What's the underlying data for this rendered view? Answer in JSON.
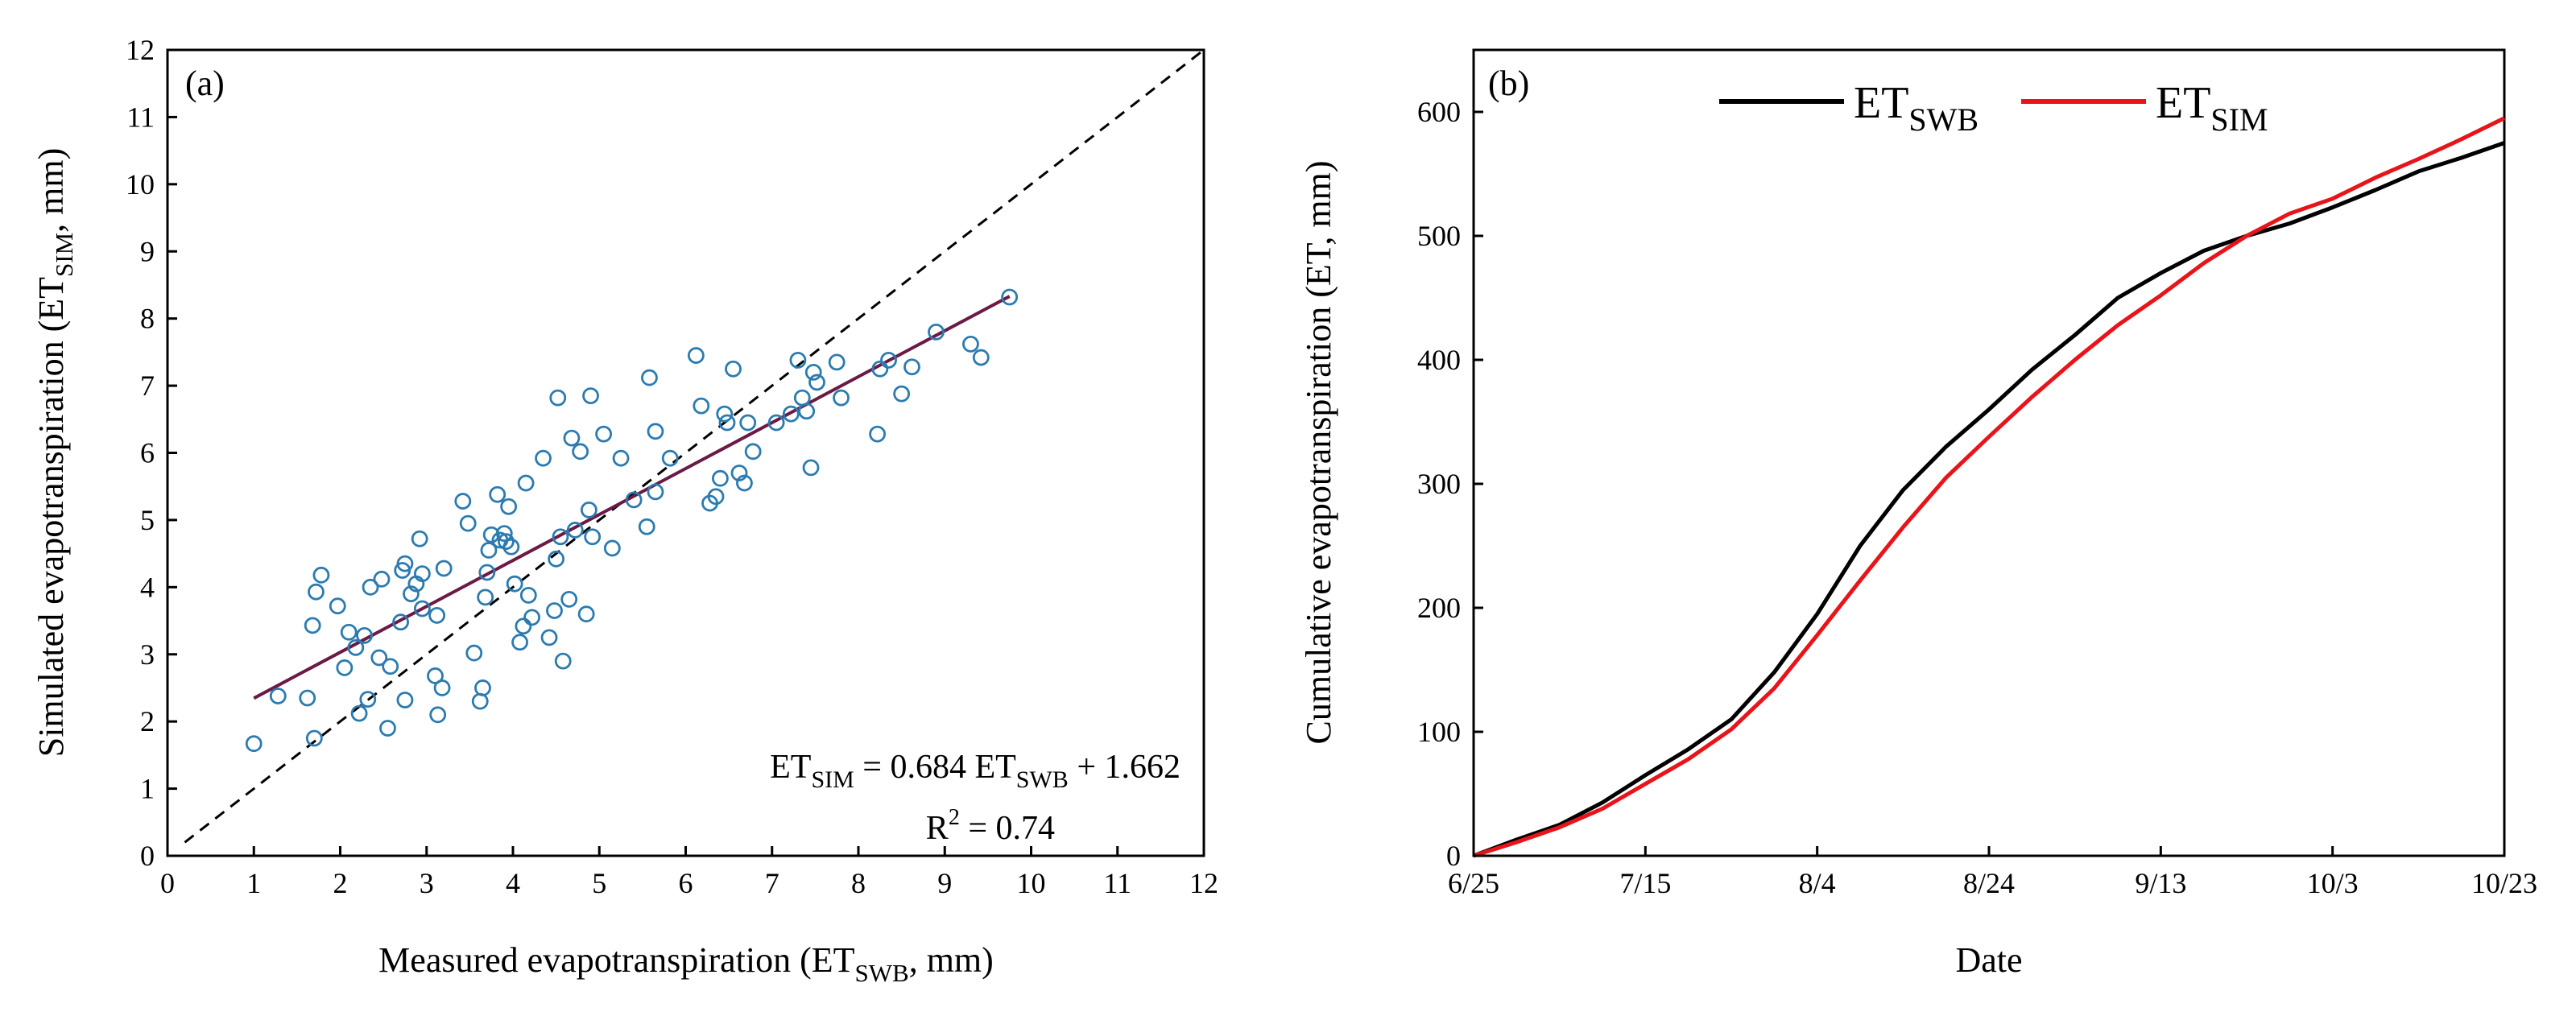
{
  "chart_data": [
    {
      "type": "scatter",
      "panel_label": "(a)",
      "xlabel": {
        "main": "Measured evapotranspiration (ET",
        "sub": "SWB",
        "tail": ", mm)"
      },
      "ylabel": {
        "main": "Simulated evapotranspiration (ET",
        "sub": "SIM",
        "tail": ", mm)"
      },
      "xlim": [
        0,
        12
      ],
      "ylim": [
        0,
        12
      ],
      "xticks": [
        "0",
        "1",
        "2",
        "3",
        "4",
        "5",
        "6",
        "7",
        "8",
        "9",
        "10",
        "11",
        "12"
      ],
      "yticks": [
        "0",
        "1",
        "2",
        "3",
        "4",
        "5",
        "6",
        "7",
        "8",
        "9",
        "10",
        "11",
        "12"
      ],
      "grid": false,
      "one_to_one_line": {
        "style": "dashed",
        "color": "#000000"
      },
      "regression": {
        "slope": 0.684,
        "intercept": 1.662,
        "x_range": [
          1.0,
          9.75
        ],
        "color": "#6b1a45"
      },
      "equation": {
        "p1": "ET",
        "s1": "SIM",
        "p2": " = 0.684 ET",
        "s2": "SWB",
        "p3": " + 1.662"
      },
      "r2": {
        "p1": "R",
        "sup": "2",
        "p2": " = 0.74"
      },
      "marker_color": "#2b7bb0",
      "points": [
        [
          1.0,
          1.67
        ],
        [
          1.28,
          2.38
        ],
        [
          1.62,
          2.35
        ],
        [
          1.7,
          1.75
        ],
        [
          1.68,
          3.43
        ],
        [
          1.72,
          3.93
        ],
        [
          1.78,
          4.18
        ],
        [
          1.97,
          3.72
        ],
        [
          2.05,
          2.8
        ],
        [
          2.1,
          3.33
        ],
        [
          2.18,
          3.1
        ],
        [
          2.22,
          2.12
        ],
        [
          2.28,
          3.28
        ],
        [
          2.32,
          2.33
        ],
        [
          2.35,
          4.0
        ],
        [
          2.45,
          2.95
        ],
        [
          2.48,
          4.12
        ],
        [
          2.55,
          1.9
        ],
        [
          2.58,
          2.82
        ],
        [
          2.7,
          3.48
        ],
        [
          2.72,
          4.25
        ],
        [
          2.75,
          4.35
        ],
        [
          2.75,
          2.32
        ],
        [
          2.82,
          3.9
        ],
        [
          2.88,
          4.05
        ],
        [
          2.92,
          4.72
        ],
        [
          2.95,
          4.2
        ],
        [
          2.95,
          3.68
        ],
        [
          3.1,
          2.68
        ],
        [
          3.12,
          3.58
        ],
        [
          3.13,
          2.1
        ],
        [
          3.18,
          2.5
        ],
        [
          3.2,
          4.28
        ],
        [
          3.42,
          5.28
        ],
        [
          3.48,
          4.95
        ],
        [
          3.55,
          3.02
        ],
        [
          3.62,
          2.3
        ],
        [
          3.65,
          2.5
        ],
        [
          3.68,
          3.85
        ],
        [
          3.7,
          4.22
        ],
        [
          3.72,
          4.55
        ],
        [
          3.75,
          4.78
        ],
        [
          3.82,
          5.38
        ],
        [
          3.85,
          4.7
        ],
        [
          3.9,
          4.8
        ],
        [
          3.92,
          4.68
        ],
        [
          3.95,
          5.2
        ],
        [
          3.98,
          4.6
        ],
        [
          4.02,
          4.05
        ],
        [
          4.08,
          3.18
        ],
        [
          4.12,
          3.42
        ],
        [
          4.15,
          5.55
        ],
        [
          4.18,
          3.88
        ],
        [
          4.22,
          3.55
        ],
        [
          4.35,
          5.92
        ],
        [
          4.42,
          3.25
        ],
        [
          4.48,
          3.65
        ],
        [
          4.5,
          4.42
        ],
        [
          4.52,
          6.82
        ],
        [
          4.55,
          4.75
        ],
        [
          4.58,
          2.9
        ],
        [
          4.65,
          3.82
        ],
        [
          4.68,
          6.22
        ],
        [
          4.72,
          4.85
        ],
        [
          4.78,
          6.02
        ],
        [
          4.85,
          3.6
        ],
        [
          4.88,
          5.15
        ],
        [
          4.9,
          6.85
        ],
        [
          4.92,
          4.75
        ],
        [
          5.05,
          6.28
        ],
        [
          5.15,
          4.58
        ],
        [
          5.25,
          5.92
        ],
        [
          5.4,
          5.3
        ],
        [
          5.55,
          4.9
        ],
        [
          5.58,
          7.12
        ],
        [
          5.65,
          5.42
        ],
        [
          5.65,
          6.32
        ],
        [
          5.82,
          5.92
        ],
        [
          6.12,
          7.45
        ],
        [
          6.18,
          6.7
        ],
        [
          6.28,
          5.25
        ],
        [
          6.35,
          5.35
        ],
        [
          6.4,
          5.62
        ],
        [
          6.45,
          6.58
        ],
        [
          6.48,
          6.45
        ],
        [
          6.55,
          7.25
        ],
        [
          6.62,
          5.7
        ],
        [
          6.68,
          5.55
        ],
        [
          6.72,
          6.45
        ],
        [
          6.78,
          6.02
        ],
        [
          7.05,
          6.45
        ],
        [
          7.22,
          6.58
        ],
        [
          7.3,
          7.38
        ],
        [
          7.35,
          6.82
        ],
        [
          7.4,
          6.62
        ],
        [
          7.45,
          5.78
        ],
        [
          7.48,
          7.2
        ],
        [
          7.52,
          7.05
        ],
        [
          7.75,
          7.35
        ],
        [
          7.8,
          6.82
        ],
        [
          8.22,
          6.28
        ],
        [
          8.25,
          7.25
        ],
        [
          8.35,
          7.38
        ],
        [
          8.5,
          6.88
        ],
        [
          8.62,
          7.28
        ],
        [
          8.9,
          7.8
        ],
        [
          9.3,
          7.62
        ],
        [
          9.42,
          7.42
        ],
        [
          9.75,
          8.32
        ]
      ]
    },
    {
      "type": "line",
      "panel_label": "(b)",
      "xlabel": "Date",
      "ylabel": "Cumulative evapotranspiration (ET, mm)",
      "xlim": [
        "6/25",
        "10/23"
      ],
      "ylim": [
        0,
        650
      ],
      "xticks": [
        "6/25",
        "7/15",
        "8/4",
        "8/24",
        "9/13",
        "10/3",
        "10/23"
      ],
      "yticks": [
        "0",
        "100",
        "200",
        "300",
        "400",
        "500",
        "600"
      ],
      "grid": false,
      "legend": {
        "placement": "top-center",
        "orientation": "horizontal"
      },
      "series": [
        {
          "name": {
            "main": "ET",
            "sub": "SWB"
          },
          "color": "#000000",
          "points": [
            [
              "6/25",
              0
            ],
            [
              "6/30",
              13
            ],
            [
              "7/5",
              25
            ],
            [
              "7/10",
              43
            ],
            [
              "7/15",
              65
            ],
            [
              "7/20",
              86
            ],
            [
              "7/25",
              110
            ],
            [
              "7/30",
              148
            ],
            [
              "8/4",
              195
            ],
            [
              "8/9",
              250
            ],
            [
              "8/14",
              295
            ],
            [
              "8/19",
              330
            ],
            [
              "8/24",
              360
            ],
            [
              "8/29",
              392
            ],
            [
              "9/3",
              420
            ],
            [
              "9/8",
              450
            ],
            [
              "9/13",
              470
            ],
            [
              "9/18",
              488
            ],
            [
              "9/23",
              500
            ],
            [
              "9/28",
              510
            ],
            [
              "10/3",
              523
            ],
            [
              "10/8",
              537
            ],
            [
              "10/13",
              552
            ],
            [
              "10/18",
              563
            ],
            [
              "10/23",
              575
            ]
          ]
        },
        {
          "name": {
            "main": "ET",
            "sub": "SIM"
          },
          "color": "#e8141a",
          "points": [
            [
              "6/25",
              0
            ],
            [
              "6/30",
              11
            ],
            [
              "7/5",
              23
            ],
            [
              "7/10",
              38
            ],
            [
              "7/15",
              58
            ],
            [
              "7/20",
              78
            ],
            [
              "7/25",
              102
            ],
            [
              "7/30",
              135
            ],
            [
              "8/4",
              178
            ],
            [
              "8/9",
              222
            ],
            [
              "8/14",
              265
            ],
            [
              "8/19",
              305
            ],
            [
              "8/24",
              338
            ],
            [
              "8/29",
              370
            ],
            [
              "9/3",
              400
            ],
            [
              "9/8",
              428
            ],
            [
              "9/13",
              452
            ],
            [
              "9/18",
              478
            ],
            [
              "9/23",
              500
            ],
            [
              "9/28",
              518
            ],
            [
              "10/3",
              530
            ],
            [
              "10/8",
              547
            ],
            [
              "10/13",
              562
            ],
            [
              "10/18",
              578
            ],
            [
              "10/23",
              595
            ]
          ]
        }
      ]
    }
  ]
}
